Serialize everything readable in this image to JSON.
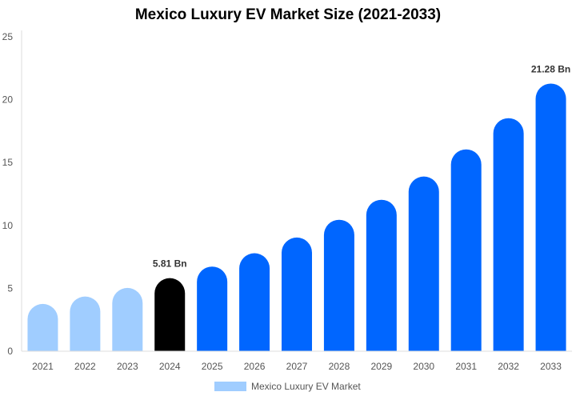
{
  "chart_data": {
    "type": "bar",
    "title": "Mexico Luxury EV Market Size (2021-2033)",
    "categories": [
      "2021",
      "2022",
      "2023",
      "2024",
      "2025",
      "2026",
      "2027",
      "2028",
      "2029",
      "2030",
      "2031",
      "2032",
      "2033"
    ],
    "series": [
      {
        "name": "Mexico Luxury EV Market",
        "values": [
          3.76,
          4.35,
          5.03,
          5.81,
          6.73,
          7.79,
          9.04,
          10.45,
          12.04,
          13.89,
          16.05,
          18.53,
          21.28
        ]
      }
    ],
    "data_labels": {
      "3": "5.81 Bn",
      "12": "21.28 Bn"
    },
    "ylim": [
      0,
      25
    ],
    "yticks": [
      0,
      5,
      10,
      15,
      20,
      25
    ],
    "grid": false,
    "legend": "bottom",
    "colors": {
      "historical": "#a0cdff",
      "current": "#000000",
      "forecast": "#0066ff"
    }
  }
}
